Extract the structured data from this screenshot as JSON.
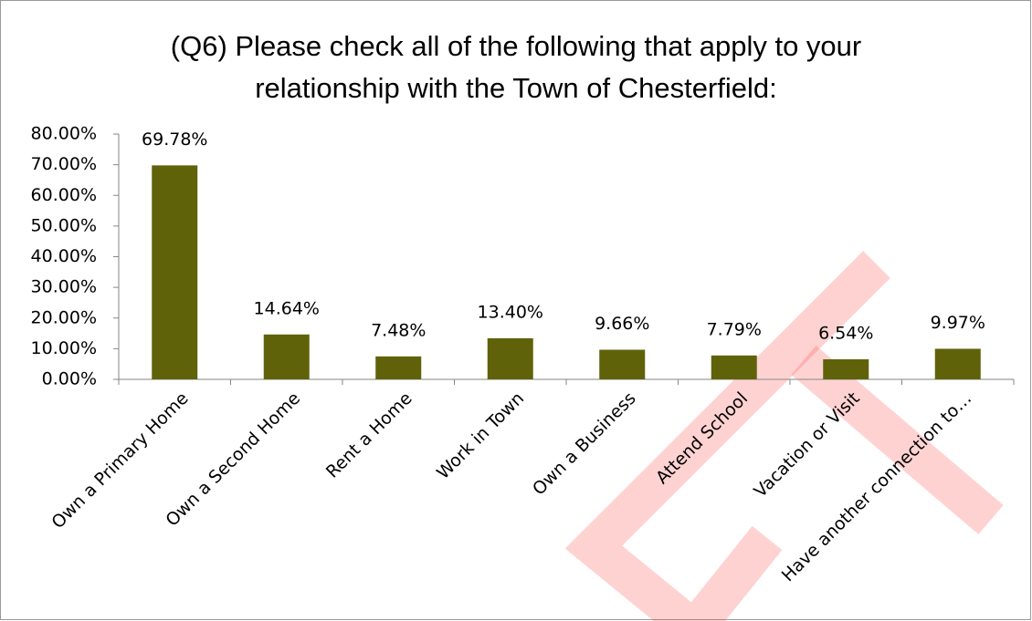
{
  "chart_data": {
    "type": "bar",
    "title": "(Q6) Please check all of the following that apply to your relationship with the Town of Chesterfield:",
    "categories": [
      "Own a Primary Home",
      "Own a Second Home",
      "Rent a Home",
      "Work in Town",
      "Own a Business",
      "Attend School",
      "Vacation or Visit",
      "Have another connection to…"
    ],
    "values": [
      69.78,
      14.64,
      7.48,
      13.4,
      9.66,
      7.79,
      6.54,
      9.97
    ],
    "value_labels": [
      "69.78%",
      "14.64%",
      "7.48%",
      "13.40%",
      "9.66%",
      "7.79%",
      "6.54%",
      "9.97%"
    ],
    "color": "#5f6209",
    "ylim": [
      0,
      80
    ],
    "yticks": [
      {
        "value": 0,
        "label": "0.00%"
      },
      {
        "value": 10,
        "label": "10.00%"
      },
      {
        "value": 20,
        "label": "20.00%"
      },
      {
        "value": 30,
        "label": "30.00%"
      },
      {
        "value": 40,
        "label": "40.00%"
      },
      {
        "value": 50,
        "label": "50.00%"
      },
      {
        "value": 60,
        "label": "60.00%"
      },
      {
        "value": 70,
        "label": "70.00%"
      },
      {
        "value": 80,
        "label": "80.00%"
      }
    ],
    "grid": false
  }
}
